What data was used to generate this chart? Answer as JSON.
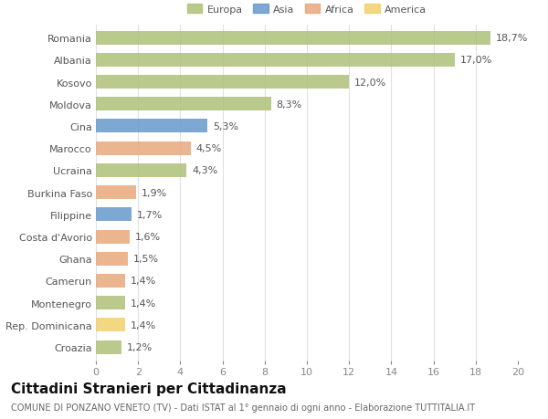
{
  "categories": [
    "Romania",
    "Albania",
    "Kosovo",
    "Moldova",
    "Cina",
    "Marocco",
    "Ucraina",
    "Burkina Faso",
    "Filippine",
    "Costa d'Avorio",
    "Ghana",
    "Camerun",
    "Montenegro",
    "Rep. Dominicana",
    "Croazia"
  ],
  "values": [
    18.7,
    17.0,
    12.0,
    8.3,
    5.3,
    4.5,
    4.3,
    1.9,
    1.7,
    1.6,
    1.5,
    1.4,
    1.4,
    1.4,
    1.2
  ],
  "labels": [
    "18,7%",
    "17,0%",
    "12,0%",
    "8,3%",
    "5,3%",
    "4,5%",
    "4,3%",
    "1,9%",
    "1,7%",
    "1,6%",
    "1,5%",
    "1,4%",
    "1,4%",
    "1,4%",
    "1,2%"
  ],
  "continents": [
    "Europa",
    "Europa",
    "Europa",
    "Europa",
    "Asia",
    "Africa",
    "Europa",
    "Africa",
    "Asia",
    "Africa",
    "Africa",
    "Africa",
    "Europa",
    "America",
    "Europa"
  ],
  "colors": {
    "Europa": "#adc178",
    "Asia": "#6699cc",
    "Africa": "#e8a87c",
    "America": "#f2d06b"
  },
  "legend_labels": [
    "Europa",
    "Asia",
    "Africa",
    "America"
  ],
  "legend_colors": [
    "#adc178",
    "#6699cc",
    "#e8a87c",
    "#f2d06b"
  ],
  "title": "Cittadini Stranieri per Cittadinanza",
  "subtitle": "COMUNE DI PONZANO VENETO (TV) - Dati ISTAT al 1° gennaio di ogni anno - Elaborazione TUTTITALIA.IT",
  "xlim": [
    0,
    20
  ],
  "xticks": [
    0,
    2,
    4,
    6,
    8,
    10,
    12,
    14,
    16,
    18,
    20
  ],
  "background_color": "#ffffff",
  "grid_color": "#e0e0e0",
  "bar_height": 0.62,
  "label_fontsize": 8,
  "tick_fontsize": 8,
  "title_fontsize": 11,
  "subtitle_fontsize": 7
}
